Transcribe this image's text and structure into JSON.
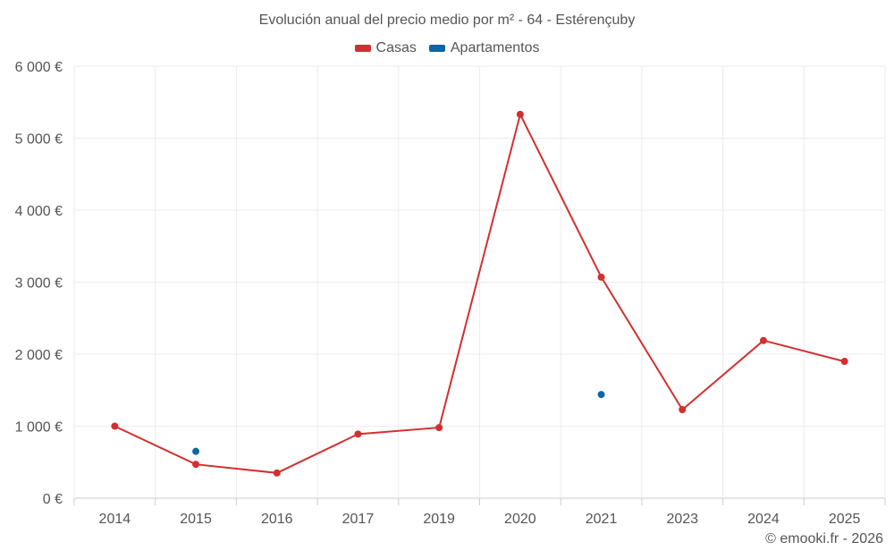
{
  "chart_data": {
    "type": "line",
    "title": "Evolución anual del precio medio por m² - 64 - Estérençuby",
    "categories": [
      "2014",
      "2015",
      "2016",
      "2017",
      "2019",
      "2020",
      "2021",
      "2023",
      "2024",
      "2025"
    ],
    "series": [
      {
        "name": "Casas",
        "color": "#d32f2f",
        "values": [
          1000,
          470,
          350,
          890,
          980,
          5330,
          3070,
          1230,
          2190,
          1900
        ]
      },
      {
        "name": "Apartamentos",
        "color": "#0d66a1",
        "values": [
          null,
          650,
          null,
          null,
          null,
          null,
          1440,
          null,
          null,
          null
        ]
      }
    ],
    "yticks": [
      "0 €",
      "1 000 €",
      "2 000 €",
      "3 000 €",
      "4 000 €",
      "5 000 €",
      "6 000 €"
    ],
    "ylim": [
      0,
      6000
    ],
    "grid": true,
    "legend_position": "top-center"
  },
  "credit": "© emooki.fr - 2026"
}
